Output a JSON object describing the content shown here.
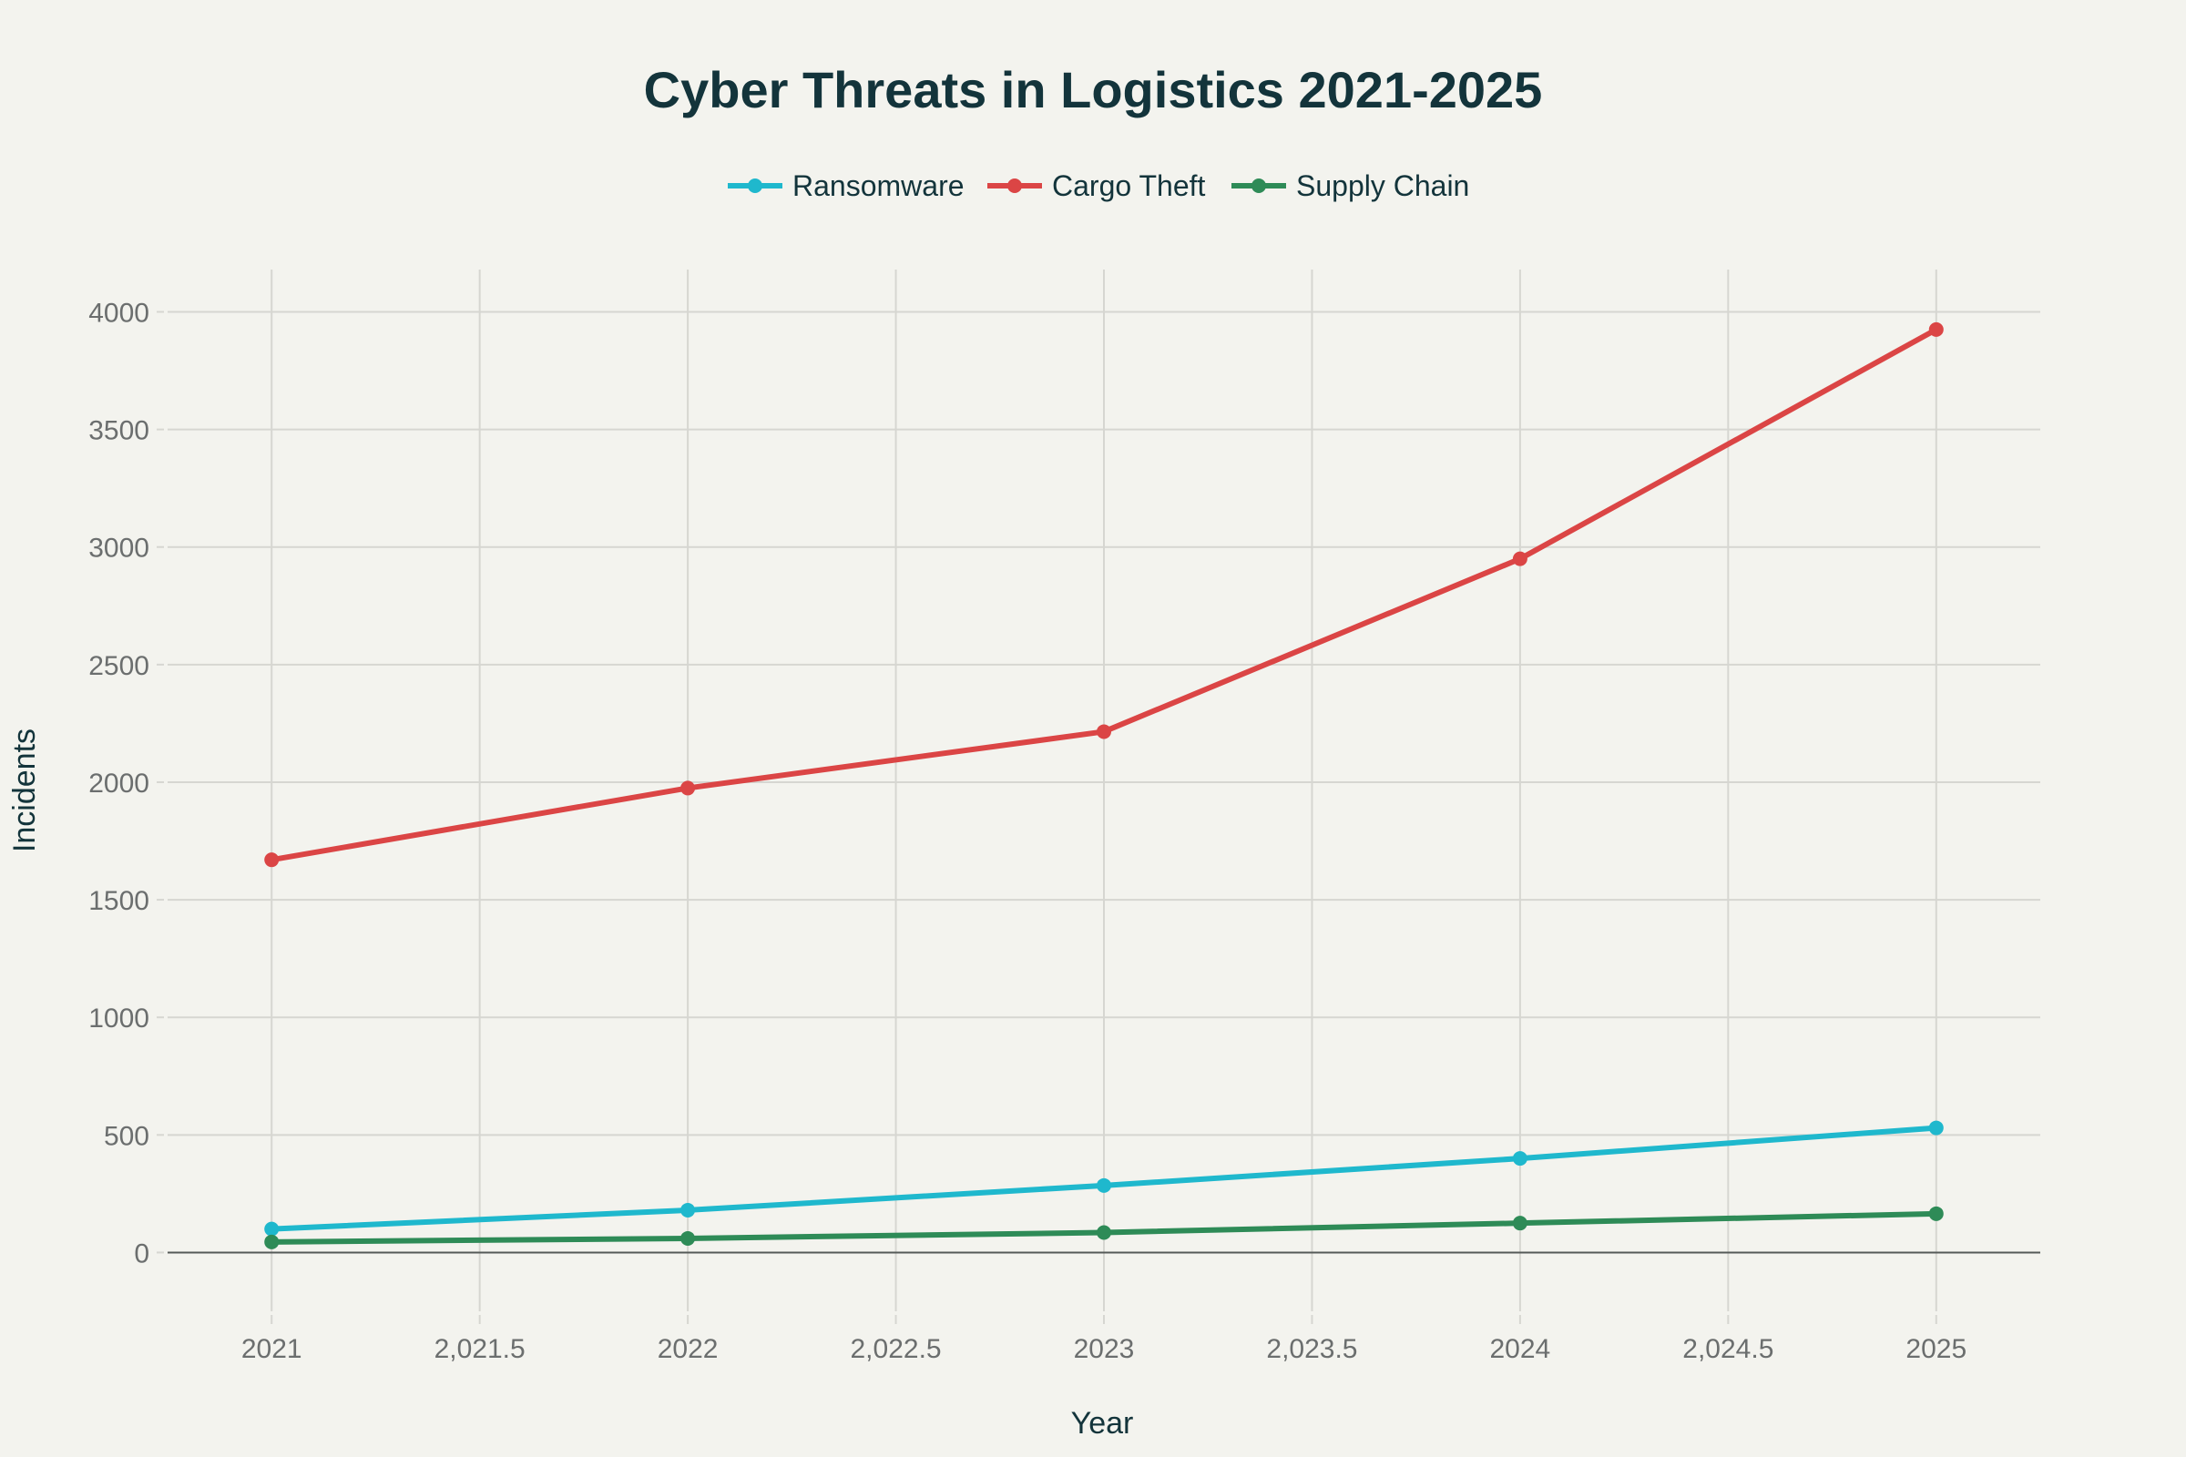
{
  "chart_data": {
    "type": "line",
    "title": "Cyber Threats in Logistics 2021-2025",
    "xlabel": "Year",
    "ylabel": "Incidents",
    "x": [
      2021,
      2022,
      2023,
      2024,
      2025
    ],
    "xlim": [
      2020.75,
      2025.25
    ],
    "ylim": [
      -250,
      4180
    ],
    "x_ticks": [
      2021,
      2021.5,
      2022,
      2022.5,
      2023,
      2023.5,
      2024,
      2024.5,
      2025
    ],
    "x_tick_labels": [
      "2021",
      "2,021.5",
      "2022",
      "2,022.5",
      "2023",
      "2,023.5",
      "2024",
      "2,024.5",
      "2025"
    ],
    "y_ticks": [
      0,
      500,
      1000,
      1500,
      2000,
      2500,
      3000,
      3500,
      4000
    ],
    "y_tick_labels": [
      "0",
      "500",
      "1000",
      "1500",
      "2000",
      "2500",
      "3000",
      "3500",
      "4000"
    ],
    "grid": true,
    "legend_position": "top-center",
    "series": [
      {
        "name": "Ransomware",
        "color": "#1fb8cd",
        "values": [
          100,
          180,
          285,
          400,
          530
        ]
      },
      {
        "name": "Cargo Theft",
        "color": "#db4545",
        "values": [
          1670,
          1975,
          2215,
          2950,
          3925
        ]
      },
      {
        "name": "Supply Chain",
        "color": "#2e8b57",
        "values": [
          45,
          60,
          85,
          125,
          165
        ]
      }
    ]
  }
}
